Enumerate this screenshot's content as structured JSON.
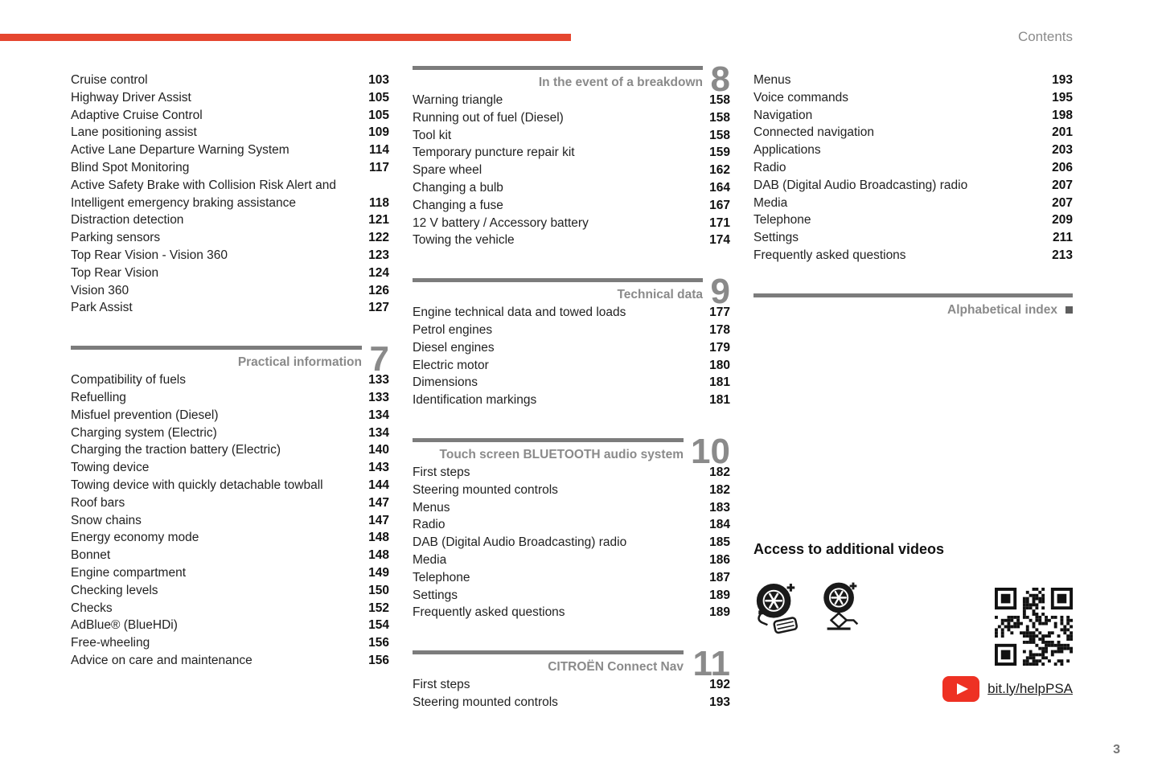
{
  "page": {
    "contents_label": "Contents",
    "page_number": "3"
  },
  "colors": {
    "accent_red": "#e5462f",
    "youtube_red": "#ee3123",
    "heading_gray": "#8a8a8a",
    "bar_gray": "#7c7c7c"
  },
  "columns": {
    "col1": {
      "sections": [
        {
          "number": "",
          "title": "",
          "entries": [
            {
              "label": "Cruise control",
              "page": "103"
            },
            {
              "label": "Highway Driver Assist",
              "page": "105"
            },
            {
              "label": "Adaptive Cruise Control",
              "page": "105"
            },
            {
              "label": "Lane positioning assist",
              "page": "109"
            },
            {
              "label": "Active Lane Departure Warning System",
              "page": "114"
            },
            {
              "label": "Blind Spot Monitoring",
              "page": "117"
            },
            {
              "label": "Active Safety Brake with Collision Risk Alert and",
              "page": ""
            },
            {
              "label": "Intelligent emergency braking assistance",
              "page": "118"
            },
            {
              "label": "Distraction detection",
              "page": "121"
            },
            {
              "label": "Parking sensors",
              "page": "122"
            },
            {
              "label": "Top Rear Vision - Vision 360",
              "page": "123"
            },
            {
              "label": "Top Rear Vision",
              "page": "124"
            },
            {
              "label": "Vision 360",
              "page": "126"
            },
            {
              "label": "Park Assist",
              "page": "127"
            }
          ]
        },
        {
          "number": "7",
          "title": "Practical information",
          "entries": [
            {
              "label": "Compatibility of fuels",
              "page": "133"
            },
            {
              "label": "Refuelling",
              "page": "133"
            },
            {
              "label": "Misfuel prevention (Diesel)",
              "page": "134"
            },
            {
              "label": "Charging system (Electric)",
              "page": "134"
            },
            {
              "label": "Charging the traction battery (Electric)",
              "page": "140"
            },
            {
              "label": "Towing device",
              "page": "143"
            },
            {
              "label": "Towing device with quickly detachable towball",
              "page": "144"
            },
            {
              "label": "Roof bars",
              "page": "147"
            },
            {
              "label": "Snow chains",
              "page": "147"
            },
            {
              "label": "Energy economy mode",
              "page": "148"
            },
            {
              "label": "Bonnet",
              "page": "148"
            },
            {
              "label": "Engine compartment",
              "page": "149"
            },
            {
              "label": "Checking levels",
              "page": "150"
            },
            {
              "label": "Checks",
              "page": "152"
            },
            {
              "label": "AdBlue® (BlueHDi)",
              "page": "154"
            },
            {
              "label": "Free-wheeling",
              "page": "156"
            },
            {
              "label": "Advice on care and maintenance",
              "page": "156"
            }
          ]
        }
      ]
    },
    "col2": {
      "sections": [
        {
          "number": "8",
          "title": "In the event of a breakdown",
          "entries": [
            {
              "label": "Warning triangle",
              "page": "158"
            },
            {
              "label": "Running out of fuel (Diesel)",
              "page": "158"
            },
            {
              "label": "Tool kit",
              "page": "158"
            },
            {
              "label": "Temporary puncture repair kit",
              "page": "159"
            },
            {
              "label": "Spare wheel",
              "page": "162"
            },
            {
              "label": "Changing a bulb",
              "page": "164"
            },
            {
              "label": "Changing a fuse",
              "page": "167"
            },
            {
              "label": "12 V battery / Accessory battery",
              "page": "171"
            },
            {
              "label": "Towing the vehicle",
              "page": "174"
            }
          ]
        },
        {
          "number": "9",
          "title": "Technical data",
          "entries": [
            {
              "label": "Engine technical data and towed loads",
              "page": "177"
            },
            {
              "label": "Petrol engines",
              "page": "178"
            },
            {
              "label": "Diesel engines",
              "page": "179"
            },
            {
              "label": "Electric motor",
              "page": "180"
            },
            {
              "label": "Dimensions",
              "page": "181"
            },
            {
              "label": "Identification markings",
              "page": "181"
            }
          ]
        },
        {
          "number": "10",
          "title": "Touch screen BLUETOOTH audio system",
          "entries": [
            {
              "label": "First steps",
              "page": "182"
            },
            {
              "label": "Steering mounted controls",
              "page": "182"
            },
            {
              "label": "Menus",
              "page": "183"
            },
            {
              "label": "Radio",
              "page": "184"
            },
            {
              "label": "DAB (Digital Audio Broadcasting) radio",
              "page": "185"
            },
            {
              "label": "Media",
              "page": "186"
            },
            {
              "label": "Telephone",
              "page": "187"
            },
            {
              "label": "Settings",
              "page": "189"
            },
            {
              "label": "Frequently asked questions",
              "page": "189"
            }
          ]
        },
        {
          "number": "11",
          "title": "CITROËN Connect Nav",
          "entries": [
            {
              "label": "First steps",
              "page": "192"
            },
            {
              "label": "Steering mounted controls",
              "page": "193"
            }
          ]
        }
      ]
    },
    "col3": {
      "sections": [
        {
          "number": "",
          "title": "",
          "entries": [
            {
              "label": "Menus",
              "page": "193"
            },
            {
              "label": "Voice commands",
              "page": "195"
            },
            {
              "label": "Navigation",
              "page": "198"
            },
            {
              "label": "Connected navigation",
              "page": "201"
            },
            {
              "label": "Applications",
              "page": "203"
            },
            {
              "label": "Radio",
              "page": "206"
            },
            {
              "label": "DAB (Digital Audio Broadcasting) radio",
              "page": "207"
            },
            {
              "label": "Media",
              "page": "207"
            },
            {
              "label": "Telephone",
              "page": "209"
            },
            {
              "label": "Settings",
              "page": "211"
            },
            {
              "label": "Frequently asked questions",
              "page": "213"
            }
          ]
        },
        {
          "number": "",
          "title": "Alphabetical index",
          "end_marker": true,
          "entries": []
        }
      ],
      "videos": {
        "heading": "Access to additional videos",
        "link": "bit.ly/helpPSA",
        "icons": [
          "tire-repair-kit-icon",
          "tire-jack-icon",
          "qr-code",
          "youtube-play-icon"
        ]
      }
    }
  }
}
